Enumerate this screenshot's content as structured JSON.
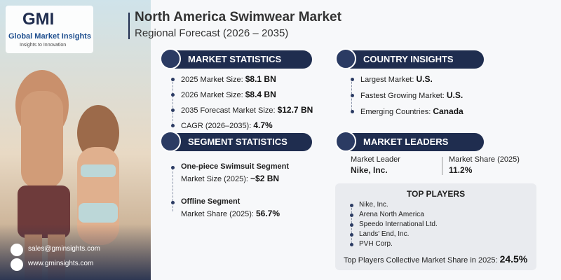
{
  "header": {
    "logo": "GMI",
    "company": "Global Market Insights",
    "tagline": "Insights to Innovation",
    "title": "North America Swimwear Market",
    "subtitle": "Regional Forecast (2026 – 2035)"
  },
  "market_statistics": {
    "title": "MARKET STATISTICS",
    "items": [
      {
        "label": "2025 Market Size:",
        "value": "$8.1 BN"
      },
      {
        "label": "2026 Market Size:",
        "value": "$8.4 BN"
      },
      {
        "label": "2035 Forecast Market Size:",
        "value": "$12.7 BN"
      },
      {
        "label": "CAGR (2026–2035):",
        "value": "4.7%"
      }
    ]
  },
  "country_insights": {
    "title": "COUNTRY INSIGHTS",
    "items": [
      {
        "label": "Largest Market:",
        "value": "U.S."
      },
      {
        "label": "Fastest Growing Market:",
        "value": "U.S."
      },
      {
        "label": "Emerging Countries:",
        "value": "Canada"
      }
    ]
  },
  "segment_statistics": {
    "title": "SEGMENT STATISTICS",
    "items": [
      {
        "name": "One-piece Swimsuit Segment",
        "label": "Market Size (2025):",
        "value": "~$2 BN"
      },
      {
        "name": "Offline Segment",
        "label": "Market Share (2025):",
        "value": "56.7%"
      }
    ]
  },
  "market_leaders": {
    "title": "MARKET LEADERS",
    "leader_label": "Market Leader",
    "leader": "Nike, Inc.",
    "share_label": "Market Share (2025)",
    "share": "11.2%"
  },
  "top_players": {
    "title": "TOP PLAYERS",
    "players": [
      "Nike, Inc.",
      "Arena North America",
      "Speedo International Ltd.",
      "Lands' End, Inc.",
      "PVH Corp."
    ],
    "collective_label": "Top Players Collective Market Share in 2025:",
    "collective_value": "24.5%"
  },
  "contact": {
    "email": "sales@gminsights.com",
    "website": "www.gminsights.com"
  }
}
